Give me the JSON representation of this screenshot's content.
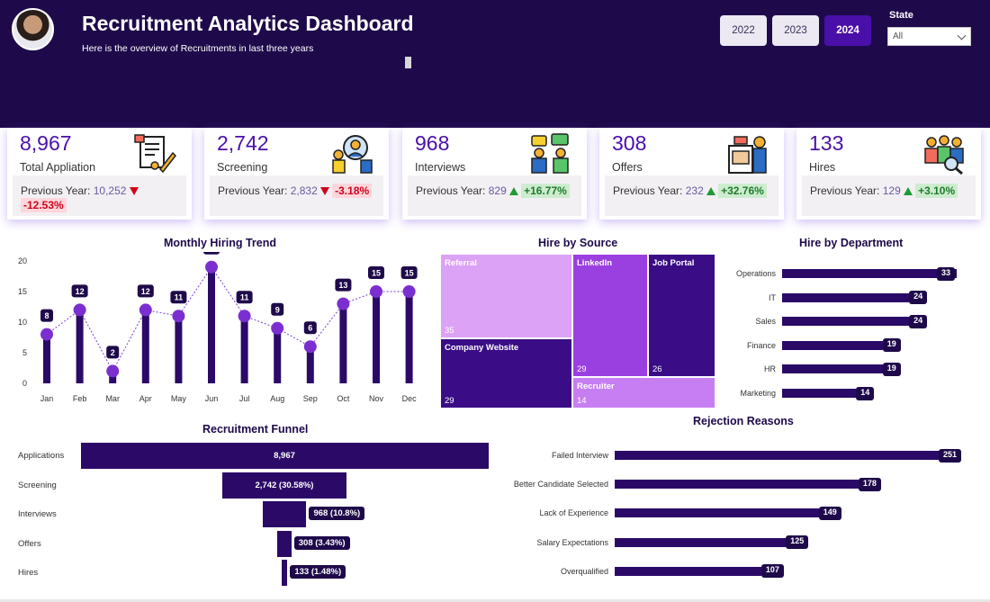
{
  "header": {
    "title": "Recruitment Analytics Dashboard",
    "subtitle": "Here is the overview of Recruitments in last three years",
    "years": [
      "2022",
      "2023",
      "2024"
    ],
    "active_year": "2024",
    "state_label": "State",
    "state_value": "All"
  },
  "colors": {
    "header_bg": "#1e0a4a",
    "accent": "#4a0fa8",
    "bar": "#2b0a67",
    "positive": "#1f7a2c",
    "negative": "#d0021b"
  },
  "kpis": [
    {
      "value": "8,967",
      "label": "Total Appliation",
      "prev_label": "Previous Year:",
      "prev_value": "10,252",
      "change": "-12.53%",
      "direction": "down",
      "icon": "application-form-icon"
    },
    {
      "value": "2,742",
      "label": "Screening",
      "prev_label": "Previous Year:",
      "prev_value": "2,832",
      "change": "-3.18%",
      "direction": "down",
      "icon": "screening-search-icon"
    },
    {
      "value": "968",
      "label": "Interviews",
      "prev_label": "Previous Year:",
      "prev_value": "829",
      "change": "+16.77%",
      "direction": "up",
      "icon": "interview-chat-icon"
    },
    {
      "value": "308",
      "label": "Offers",
      "prev_label": "Previous Year:",
      "prev_value": "232",
      "change": "+32.76%",
      "direction": "up",
      "icon": "offer-document-icon"
    },
    {
      "value": "133",
      "label": "Hires",
      "prev_label": "Previous Year:",
      "prev_value": "129",
      "change": "+3.10%",
      "direction": "up",
      "icon": "hired-team-icon"
    }
  ],
  "chart_data": [
    {
      "type": "line",
      "title": "Monthly Hiring Trend",
      "categories": [
        "Jan",
        "Feb",
        "Mar",
        "Apr",
        "May",
        "Jun",
        "Jul",
        "Aug",
        "Sep",
        "Oct",
        "Nov",
        "Dec"
      ],
      "values": [
        8,
        12,
        2,
        12,
        11,
        19,
        11,
        9,
        6,
        13,
        15,
        15
      ],
      "yticks": [
        "0",
        "5",
        "10",
        "15",
        "20"
      ],
      "ylim": [
        0,
        20
      ]
    },
    {
      "type": "heatmap",
      "title": "Hire by Source",
      "categories": [
        "Referral",
        "Company Website",
        "LinkedIn",
        "Job Portal",
        "Recruiter"
      ],
      "values": [
        35,
        29,
        29,
        26,
        14
      ]
    },
    {
      "type": "bar",
      "title": "Hire by Department",
      "categories": [
        "Operations",
        "IT",
        "Sales",
        "Finance",
        "HR",
        "Marketing"
      ],
      "values": [
        33,
        24,
        24,
        19,
        19,
        14
      ]
    },
    {
      "type": "bar",
      "title": "Recruitment Funnel",
      "categories": [
        "Applications",
        "Screening",
        "Interviews",
        "Offers",
        "Hires"
      ],
      "values": [
        8967,
        2742,
        968,
        308,
        133
      ],
      "labels": [
        "8,967",
        "2,742 (30.58%)",
        "968 (10.8%)",
        "308 (3.43%)",
        "133 (1.48%)"
      ]
    },
    {
      "type": "bar",
      "title": "Rejection Reasons",
      "categories": [
        "Failed Interview",
        "Better Candidate Selected",
        "Lack of Experience",
        "Salary Expectations",
        "Overqualified"
      ],
      "values": [
        251,
        178,
        149,
        125,
        107
      ]
    }
  ]
}
